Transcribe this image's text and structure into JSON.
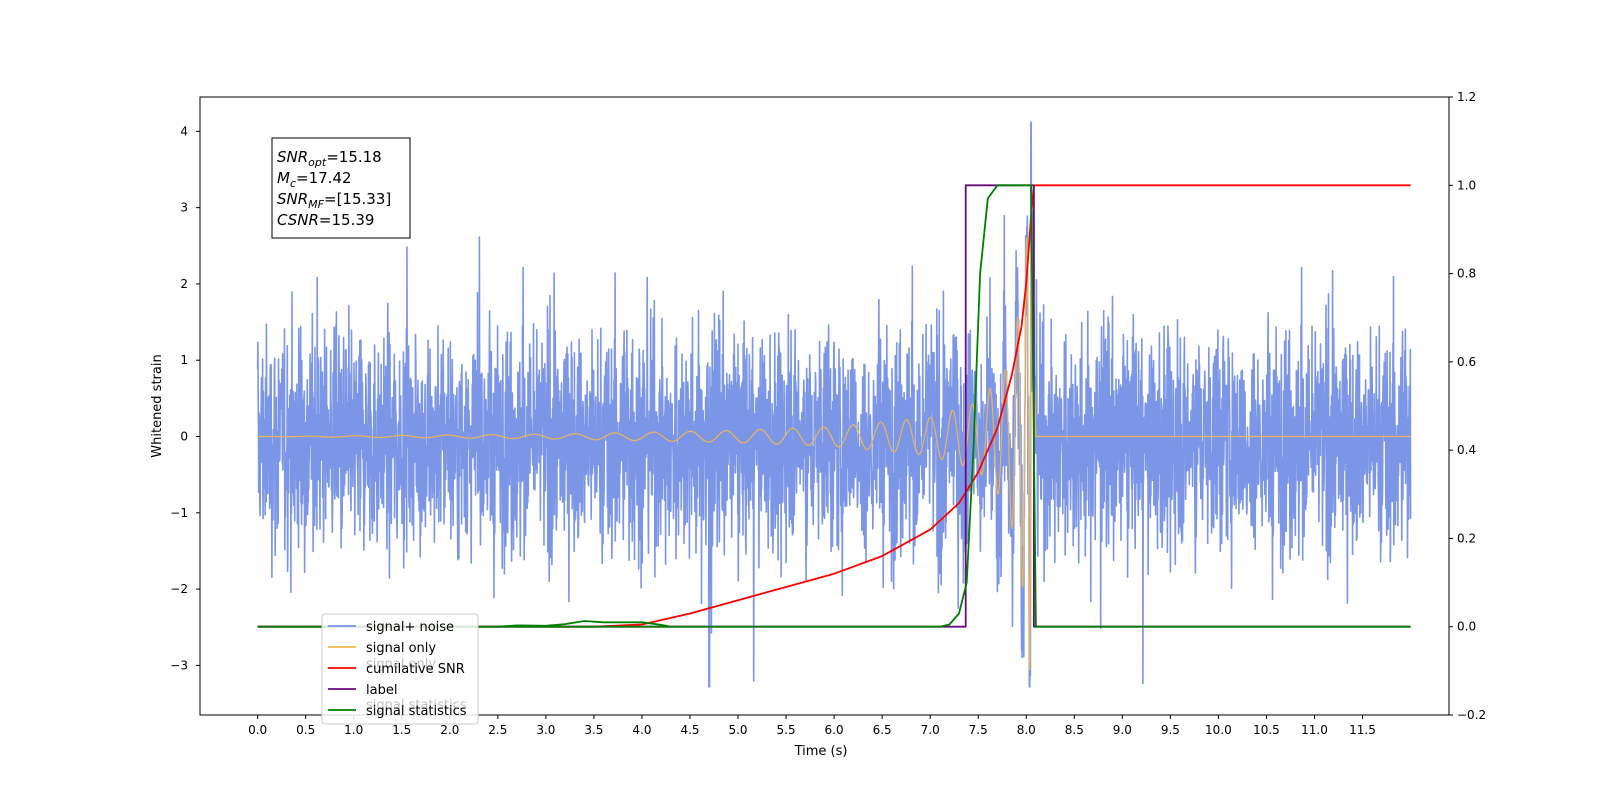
{
  "chart_data": {
    "type": "line",
    "title": "",
    "xlabel": "Time (s)",
    "ylabel": "Whitened strain",
    "y2label": "",
    "xlim": [
      -0.6,
      12.4
    ],
    "ylim": [
      -3.65,
      4.45
    ],
    "y2lim": [
      -0.2,
      1.2
    ],
    "x_ticks": [
      "0.0",
      "0.5",
      "1.0",
      "1.5",
      "2.0",
      "2.5",
      "3.0",
      "3.5",
      "4.0",
      "4.5",
      "5.0",
      "5.5",
      "6.0",
      "6.5",
      "7.0",
      "7.5",
      "8.0",
      "8.5",
      "9.0",
      "9.5",
      "10.0",
      "10.5",
      "11.0",
      "11.5"
    ],
    "y_ticks": [
      "−3",
      "−2",
      "−1",
      "0",
      "1",
      "2",
      "3",
      "4"
    ],
    "y2_ticks": [
      "−0.2",
      "0.0",
      "0.2",
      "0.4",
      "0.6",
      "0.8",
      "1.0",
      "1.2"
    ],
    "grid": false,
    "legend_position": "lower-left",
    "series": [
      {
        "name": "signal+ noise",
        "axis": "left",
        "color": "#7b96e6",
        "kind": "noise",
        "x_range": [
          0.0,
          12.0
        ],
        "typical_range": [
          -1.1,
          1.0
        ],
        "peak_max": 4.12,
        "peak_min": -3.28,
        "peak_max_at": 8.05,
        "peak_min_at": 4.7
      },
      {
        "name": "signal only",
        "axis": "left",
        "color": "#f5b84a",
        "kind": "chirp",
        "x_range": [
          0.0,
          12.0
        ],
        "merger_time": 8.05,
        "peak_amplitude": 3.3,
        "envelope": [
          {
            "x": 0.0,
            "y": 0.0
          },
          {
            "x": 3.0,
            "y": 0.03
          },
          {
            "x": 5.0,
            "y": 0.08
          },
          {
            "x": 6.0,
            "y": 0.13
          },
          {
            "x": 7.0,
            "y": 0.25
          },
          {
            "x": 7.5,
            "y": 0.45
          },
          {
            "x": 7.8,
            "y": 0.9
          },
          {
            "x": 7.95,
            "y": 1.8
          },
          {
            "x": 8.05,
            "y": 3.3
          },
          {
            "x": 8.1,
            "y": 0.0
          }
        ]
      },
      {
        "name": "cumilative SNR",
        "axis": "right",
        "color": "#ff0000",
        "points": [
          {
            "x": 0.0,
            "y": 0.0
          },
          {
            "x": 3.5,
            "y": 0.0
          },
          {
            "x": 4.0,
            "y": 0.005
          },
          {
            "x": 4.5,
            "y": 0.03
          },
          {
            "x": 5.0,
            "y": 0.06
          },
          {
            "x": 5.5,
            "y": 0.09
          },
          {
            "x": 6.0,
            "y": 0.12
          },
          {
            "x": 6.5,
            "y": 0.16
          },
          {
            "x": 7.0,
            "y": 0.22
          },
          {
            "x": 7.3,
            "y": 0.28
          },
          {
            "x": 7.5,
            "y": 0.35
          },
          {
            "x": 7.7,
            "y": 0.45
          },
          {
            "x": 7.85,
            "y": 0.57
          },
          {
            "x": 7.95,
            "y": 0.68
          },
          {
            "x": 8.0,
            "y": 0.78
          },
          {
            "x": 8.05,
            "y": 0.93
          },
          {
            "x": 8.08,
            "y": 1.0
          },
          {
            "x": 12.0,
            "y": 1.0
          }
        ]
      },
      {
        "name": "label",
        "axis": "right",
        "color": "#6a0a80",
        "points": [
          {
            "x": 0.0,
            "y": 0.0
          },
          {
            "x": 7.37,
            "y": 0.0
          },
          {
            "x": 7.37,
            "y": 1.0
          },
          {
            "x": 8.08,
            "y": 1.0
          },
          {
            "x": 8.08,
            "y": 0.0
          },
          {
            "x": 12.0,
            "y": 0.0
          }
        ]
      },
      {
        "name": "signal statistics",
        "axis": "right",
        "color": "#008000",
        "points": [
          {
            "x": 0.0,
            "y": 0.0
          },
          {
            "x": 7.1,
            "y": 0.0
          },
          {
            "x": 7.2,
            "y": 0.005
          },
          {
            "x": 7.3,
            "y": 0.03
          },
          {
            "x": 7.38,
            "y": 0.1
          },
          {
            "x": 7.45,
            "y": 0.4
          },
          {
            "x": 7.52,
            "y": 0.8
          },
          {
            "x": 7.6,
            "y": 0.97
          },
          {
            "x": 7.7,
            "y": 1.0
          },
          {
            "x": 8.05,
            "y": 1.0
          },
          {
            "x": 8.1,
            "y": 0.0
          },
          {
            "x": 12.0,
            "y": 0.0
          }
        ],
        "early_bump": [
          {
            "x": 2.5,
            "y": 0.0
          },
          {
            "x": 2.7,
            "y": 0.003
          },
          {
            "x": 3.0,
            "y": 0.002
          },
          {
            "x": 3.2,
            "y": 0.006
          },
          {
            "x": 3.4,
            "y": 0.013
          },
          {
            "x": 3.6,
            "y": 0.01
          },
          {
            "x": 3.8,
            "y": 0.01
          },
          {
            "x": 4.0,
            "y": 0.01
          },
          {
            "x": 4.2,
            "y": 0.004
          },
          {
            "x": 4.3,
            "y": 0.0
          }
        ]
      }
    ],
    "legend_entries": [
      {
        "label": "signal+ noise",
        "color": "#7b96e6"
      },
      {
        "label": "signal only",
        "color": "#f5b84a"
      },
      {
        "label": "cumilative SNR",
        "color": "#ff0000"
      },
      {
        "label": "label",
        "color": "#6a0a80"
      },
      {
        "label": "signal statistics",
        "color": "#008000"
      }
    ],
    "legend_hidden_entries": [
      "signal only",
      "signal statistics"
    ],
    "annotation": {
      "lines": [
        {
          "var": "SNR",
          "sub": "opt",
          "value": "=15.18"
        },
        {
          "var": "M",
          "sub": "c",
          "value": "=17.42"
        },
        {
          "var": "SNR",
          "sub": "MF",
          "value": "=[15.33]"
        },
        {
          "var": "CSNR",
          "sub": "",
          "value": "=15.39"
        }
      ]
    }
  }
}
